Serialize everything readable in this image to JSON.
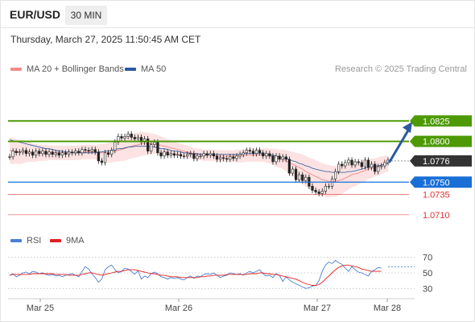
{
  "header": {
    "pair": "EUR/USD",
    "timeframe": "30 MIN"
  },
  "datetime": "Thursday, March 27, 2025 11:50:45 AM CET",
  "legend": {
    "ma20": {
      "label": "MA 20 + Bollinger Bands",
      "color": "#f28b8b"
    },
    "ma50": {
      "label": "MA 50",
      "color": "#2c5aa0"
    }
  },
  "credit": "Research © 2025 Trading Central",
  "rsi_legend": {
    "rsi": {
      "label": "RSI",
      "color": "#4a7fd4"
    },
    "ma9": {
      "label": "9MA",
      "color": "#e02020"
    }
  },
  "chart_data": [
    {
      "type": "line",
      "subtype": "candlestick",
      "x_ticks": [
        "Mar 25",
        "Mar 26",
        "Mar 27",
        "Mar 28"
      ],
      "ylim": [
        1.0695,
        1.0845
      ],
      "levels": [
        {
          "value": 1.0825,
          "label": "1.0825",
          "kind": "resistance",
          "color": "#4e9a06",
          "style": "tag"
        },
        {
          "value": 1.08,
          "label": "1.0800",
          "kind": "resistance",
          "color": "#4e9a06",
          "style": "tag"
        },
        {
          "value": 1.0776,
          "label": "1.0776",
          "kind": "last",
          "color": "#333333",
          "style": "tag"
        },
        {
          "value": 1.075,
          "label": "1.0750",
          "kind": "pivot",
          "color": "#1a6fd6",
          "style": "tag"
        },
        {
          "value": 1.0735,
          "label": "1.0735",
          "kind": "support",
          "color": "#e03030",
          "style": "text"
        },
        {
          "value": 1.071,
          "label": "1.0710",
          "kind": "support",
          "color": "#e03030",
          "style": "text"
        }
      ],
      "forecast_arrow": {
        "from": 1.0777,
        "to": 1.0822,
        "color": "#2c5aa0"
      },
      "price_series": [
        1.0781,
        1.0788,
        1.0786,
        1.0787,
        1.0789,
        1.0785,
        1.0787,
        1.0783,
        1.0788,
        1.0785,
        1.0788,
        1.0784,
        1.0787,
        1.0784,
        1.0786,
        1.0783,
        1.0786,
        1.0784,
        1.0787,
        1.0786,
        1.0788,
        1.0786,
        1.079,
        1.0789,
        1.0788,
        1.079,
        1.0787,
        1.0776,
        1.0774,
        1.0786,
        1.0784,
        1.0789,
        1.0799,
        1.0806,
        1.0804,
        1.0806,
        1.0809,
        1.0805,
        1.0803,
        1.0805,
        1.0799,
        1.0803,
        1.0788,
        1.0796,
        1.0799,
        1.0786,
        1.0782,
        1.0787,
        1.0783,
        1.0785,
        1.0783,
        1.0784,
        1.0782,
        1.0782,
        1.0784,
        1.0785,
        1.0779,
        1.0782,
        1.0782,
        1.0785,
        1.0783,
        1.0785,
        1.0782,
        1.0778,
        1.078,
        1.0779,
        1.0778,
        1.0781,
        1.0779,
        1.0782,
        1.0784,
        1.0786,
        1.0789,
        1.0788,
        1.0785,
        1.0789,
        1.0786,
        1.0782,
        1.0785,
        1.0782,
        1.0775,
        1.0782,
        1.0778,
        1.0781,
        1.0778,
        1.0761,
        1.0766,
        1.0753,
        1.0759,
        1.0752,
        1.0756,
        1.0745,
        1.074,
        1.0738,
        1.0736,
        1.0739,
        1.0745,
        1.0745,
        1.0754,
        1.0763,
        1.0772,
        1.077,
        1.0774,
        1.0777,
        1.0771,
        1.0775,
        1.0774,
        1.0769,
        1.0777,
        1.0768,
        1.0772,
        1.0763,
        1.0769,
        1.077,
        1.0774,
        1.0777
      ],
      "ma50_series": [
        1.0802,
        1.0801,
        1.08,
        1.0799,
        1.0798,
        1.0797,
        1.0796,
        1.0795,
        1.0794,
        1.0793,
        1.0792,
        1.0791,
        1.0791,
        1.079,
        1.0789,
        1.0788,
        1.0788,
        1.0787,
        1.0787,
        1.0786,
        1.0786,
        1.0786,
        1.0786,
        1.0786,
        1.0786,
        1.0786,
        1.0786,
        1.0787,
        1.0787,
        1.0788,
        1.0788,
        1.0789,
        1.079,
        1.0791,
        1.0791,
        1.0792,
        1.0793,
        1.0793,
        1.0794,
        1.0794,
        1.0794,
        1.0794,
        1.0794,
        1.0793,
        1.0793,
        1.0792,
        1.0791,
        1.0791,
        1.079,
        1.0789,
        1.0788,
        1.0788,
        1.0787,
        1.0786,
        1.0786,
        1.0785,
        1.0785,
        1.0785,
        1.0784,
        1.0784,
        1.0784,
        1.0784,
        1.0784,
        1.0784,
        1.0784,
        1.0784,
        1.0784,
        1.0784,
        1.0784,
        1.0784,
        1.0784,
        1.0785,
        1.0785,
        1.0785,
        1.0785,
        1.0785,
        1.0785,
        1.0785,
        1.0784,
        1.0784,
        1.0783,
        1.0782,
        1.0781,
        1.078,
        1.0779,
        1.0778,
        1.0776,
        1.0775,
        1.0773,
        1.0772,
        1.077,
        1.0769,
        1.0767,
        1.0766,
        1.0765,
        1.0764,
        1.0763,
        1.0763,
        1.0762,
        1.0762,
        1.0762,
        1.0762,
        1.0762,
        1.0763,
        1.0763,
        1.0764,
        1.0765,
        1.0766,
        1.0767,
        1.0768,
        1.0769,
        1.077,
        1.077,
        1.0771,
        1.0772,
        1.0773
      ],
      "ma20_series": [
        1.0789,
        1.0788,
        1.0788,
        1.0787,
        1.0787,
        1.0787,
        1.0787,
        1.0786,
        1.0786,
        1.0786,
        1.0786,
        1.0786,
        1.0786,
        1.0786,
        1.0786,
        1.0786,
        1.0786,
        1.0786,
        1.0786,
        1.0786,
        1.0786,
        1.0786,
        1.0787,
        1.0787,
        1.0787,
        1.0787,
        1.0787,
        1.0786,
        1.0786,
        1.0786,
        1.0786,
        1.0787,
        1.0788,
        1.0789,
        1.079,
        1.0791,
        1.0793,
        1.0794,
        1.0795,
        1.0796,
        1.0797,
        1.0797,
        1.0797,
        1.0797,
        1.0797,
        1.0796,
        1.0795,
        1.0794,
        1.0793,
        1.0792,
        1.0791,
        1.079,
        1.0789,
        1.0788,
        1.0787,
        1.0786,
        1.0785,
        1.0784,
        1.0784,
        1.0783,
        1.0783,
        1.0783,
        1.0783,
        1.0782,
        1.0782,
        1.0782,
        1.0782,
        1.0782,
        1.0782,
        1.0782,
        1.0782,
        1.0782,
        1.0783,
        1.0783,
        1.0783,
        1.0783,
        1.0783,
        1.0783,
        1.0783,
        1.0782,
        1.0781,
        1.078,
        1.0779,
        1.0778,
        1.0776,
        1.0774,
        1.0772,
        1.077,
        1.0768,
        1.0766,
        1.0763,
        1.0761,
        1.0759,
        1.0757,
        1.0755,
        1.0753,
        1.0752,
        1.0751,
        1.0751,
        1.0751,
        1.0752,
        1.0753,
        1.0755,
        1.0757,
        1.0759,
        1.076,
        1.0761,
        1.0763,
        1.0764,
        1.0766,
        1.0767,
        1.0768,
        1.0769,
        1.0771,
        1.0772,
        1.0773
      ],
      "band_width_series": [
        0.0016,
        0.0016,
        0.0015,
        0.0015,
        0.0014,
        0.0013,
        0.0012,
        0.0011,
        0.0011,
        0.001,
        0.001,
        0.001,
        0.0009,
        0.0009,
        0.0009,
        0.0009,
        0.0009,
        0.0009,
        0.0009,
        0.0009,
        0.0009,
        0.0009,
        0.0009,
        0.0009,
        0.0009,
        0.0009,
        0.0009,
        0.001,
        0.0011,
        0.0011,
        0.0012,
        0.0013,
        0.0013,
        0.0014,
        0.0014,
        0.0015,
        0.0015,
        0.0015,
        0.0015,
        0.0015,
        0.0015,
        0.0014,
        0.0014,
        0.0013,
        0.0012,
        0.0012,
        0.0011,
        0.001,
        0.001,
        0.0009,
        0.0009,
        0.0008,
        0.0008,
        0.0008,
        0.0008,
        0.0007,
        0.0007,
        0.0007,
        0.0007,
        0.0007,
        0.0007,
        0.0007,
        0.0007,
        0.0007,
        0.0007,
        0.0007,
        0.0007,
        0.0007,
        0.0007,
        0.0008,
        0.0008,
        0.0008,
        0.0008,
        0.0008,
        0.0008,
        0.0008,
        0.0008,
        0.0008,
        0.0009,
        0.0009,
        0.001,
        0.0011,
        0.0011,
        0.0012,
        0.0013,
        0.0014,
        0.0015,
        0.0016,
        0.0017,
        0.0018,
        0.0019,
        0.0019,
        0.002,
        0.002,
        0.002,
        0.002,
        0.002,
        0.002,
        0.0019,
        0.0019,
        0.0018,
        0.0017,
        0.0017,
        0.0016,
        0.0015,
        0.0015,
        0.0014,
        0.0013,
        0.0013,
        0.0012,
        0.0012,
        0.0011,
        0.0011,
        0.0011,
        0.001,
        0.001
      ]
    },
    {
      "type": "line",
      "subtype": "rsi",
      "ylim": [
        20,
        80
      ],
      "y_ticks": [
        70,
        50,
        30
      ],
      "dotted_levels": [
        70,
        50,
        30
      ],
      "rsi_series": [
        47,
        49,
        45,
        47,
        50,
        51,
        49,
        52,
        51,
        49,
        50,
        48,
        47,
        48,
        46,
        47,
        45,
        47,
        48,
        49,
        47,
        45,
        52,
        58,
        55,
        49,
        44,
        38,
        42,
        54,
        58,
        60,
        54,
        50,
        52,
        56,
        55,
        52,
        48,
        53,
        42,
        46,
        44,
        49,
        51,
        49,
        45,
        44,
        42,
        44,
        43,
        44,
        42,
        41,
        44,
        46,
        43,
        46,
        45,
        48,
        49,
        48,
        50,
        47,
        44,
        46,
        47,
        50,
        49,
        48,
        49,
        47,
        50,
        52,
        50,
        52,
        54,
        49,
        46,
        47,
        44,
        49,
        47,
        39,
        45,
        41,
        38,
        36,
        34,
        32,
        30,
        31,
        33,
        34,
        40,
        52,
        60,
        64,
        62,
        66,
        63,
        61,
        56,
        52,
        58,
        54,
        51,
        50,
        48,
        46,
        52,
        54,
        57,
        56
      ],
      "ma9_series": [
        47,
        48,
        48,
        48,
        48,
        48,
        48,
        49,
        49,
        49,
        49,
        49,
        49,
        49,
        48,
        48,
        48,
        48,
        47,
        47,
        47,
        47,
        48,
        49,
        50,
        50,
        49,
        48,
        47,
        48,
        49,
        50,
        51,
        52,
        52,
        53,
        54,
        54,
        54,
        53,
        52,
        51,
        50,
        49,
        49,
        48,
        47,
        47,
        46,
        45,
        45,
        45,
        44,
        44,
        44,
        44,
        44,
        44,
        45,
        45,
        46,
        46,
        47,
        47,
        47,
        47,
        48,
        48,
        48,
        48,
        48,
        48,
        48,
        49,
        49,
        49,
        50,
        50,
        49,
        49,
        48,
        48,
        47,
        46,
        45,
        44,
        43,
        42,
        40,
        38,
        36,
        35,
        34,
        34,
        35,
        38,
        42,
        46,
        50,
        54,
        57,
        59,
        60,
        60,
        59,
        58,
        57,
        55,
        54,
        53,
        52,
        52,
        52,
        52
      ],
      "rsi_extension": 58
    }
  ]
}
